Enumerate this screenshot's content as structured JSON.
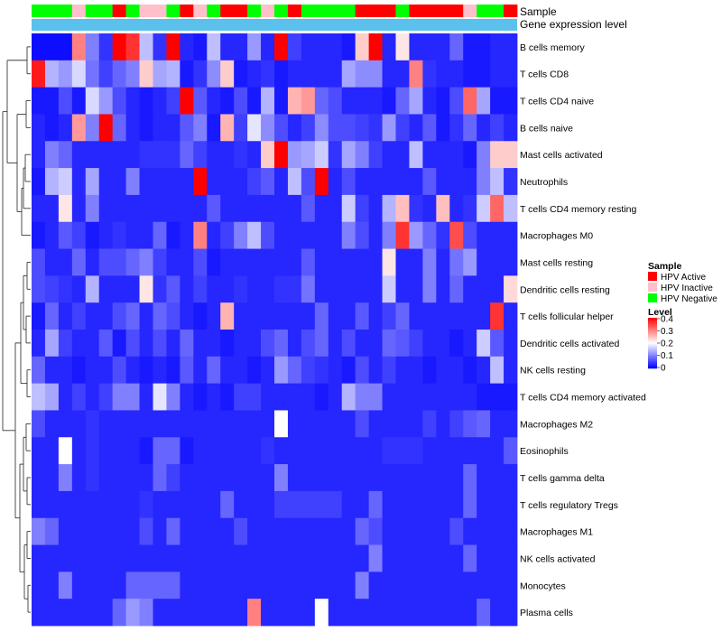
{
  "chart_data": {
    "type": "heatmap",
    "title": "",
    "annotation_tracks": [
      "Sample",
      "Gene expression level"
    ],
    "rows": [
      "B cells memory",
      "T cells CD8",
      "T cells CD4 naive",
      "B cells naive",
      "Mast cells activated",
      "Neutrophils",
      "T cells CD4 memory resting",
      "Macrophages M0",
      "Mast cells resting",
      "Dendritic cells resting",
      "T cells follicular helper",
      "Dendritic cells activated",
      "NK cells resting",
      "T cells CD4 memory activated",
      "Macrophages M2",
      "Eosinophils",
      "T cells gamma delta",
      "T cells regulatory  Tregs",
      "Macrophages M1",
      "NK cells activated",
      "Monocytes",
      "Plasma cells"
    ],
    "columns": 36,
    "sample_groups": [
      "N",
      "N",
      "N",
      "I",
      "N",
      "N",
      "A",
      "N",
      "I",
      "I",
      "N",
      "A",
      "I",
      "N",
      "A",
      "A",
      "N",
      "I",
      "N",
      "A",
      "N",
      "N",
      "N",
      "N",
      "A",
      "A",
      "A",
      "N",
      "A",
      "A",
      "A",
      "A",
      "I",
      "N",
      "N",
      "A"
    ],
    "values": [
      [
        0.01,
        0.01,
        0.01,
        0.3,
        0.1,
        0.04,
        0.4,
        0.36,
        0.15,
        0.04,
        0.4,
        0.03,
        0.02,
        0.15,
        0.03,
        0.03,
        0.12,
        0.03,
        0.4,
        0.05,
        0.03,
        0.03,
        0.03,
        0.02,
        0.24,
        0.4,
        0.03,
        0.22,
        0.03,
        0.03,
        0.03,
        0.08,
        0.02,
        0.02,
        0.03,
        0.03
      ],
      [
        0.38,
        0.14,
        0.12,
        0.17,
        0.09,
        0.05,
        0.08,
        0.1,
        0.24,
        0.13,
        0.14,
        0.02,
        0.04,
        0.11,
        0.24,
        0.02,
        0.03,
        0.04,
        0.02,
        0.03,
        0.03,
        0.03,
        0.03,
        0.13,
        0.11,
        0.11,
        0.03,
        0.03,
        0.3,
        0.04,
        0.03,
        0.03,
        0.02,
        0.02,
        0.03,
        0.03
      ],
      [
        0.02,
        0.02,
        0.06,
        0.02,
        0.17,
        0.12,
        0.06,
        0.03,
        0.02,
        0.03,
        0.05,
        0.4,
        0.07,
        0.03,
        0.02,
        0.06,
        0.02,
        0.14,
        0.02,
        0.26,
        0.28,
        0.08,
        0.06,
        0.03,
        0.03,
        0.03,
        0.02,
        0.08,
        0.13,
        0.03,
        0.02,
        0.06,
        0.32,
        0.13,
        0.02,
        0.02
      ],
      [
        0.03,
        0.02,
        0.03,
        0.28,
        0.1,
        0.4,
        0.08,
        0.03,
        0.02,
        0.03,
        0.03,
        0.07,
        0.1,
        0.02,
        0.26,
        0.05,
        0.18,
        0.11,
        0.06,
        0.03,
        0.05,
        0.11,
        0.06,
        0.06,
        0.05,
        0.04,
        0.12,
        0.05,
        0.03,
        0.07,
        0.02,
        0.04,
        0.08,
        0.03,
        0.05,
        0.03
      ],
      [
        0.03,
        0.1,
        0.08,
        0.03,
        0.03,
        0.03,
        0.03,
        0.03,
        0.04,
        0.04,
        0.04,
        0.08,
        0.05,
        0.03,
        0.03,
        0.04,
        0.03,
        0.24,
        0.4,
        0.12,
        0.13,
        0.16,
        0.04,
        0.13,
        0.1,
        0.05,
        0.03,
        0.03,
        0.15,
        0.03,
        0.03,
        0.03,
        0.02,
        0.1,
        0.24,
        0.24
      ],
      [
        0.02,
        0.14,
        0.16,
        0.03,
        0.13,
        0.03,
        0.03,
        0.1,
        0.03,
        0.03,
        0.03,
        0.03,
        0.4,
        0.03,
        0.03,
        0.03,
        0.05,
        0.07,
        0.03,
        0.15,
        0.06,
        0.4,
        0.03,
        0.06,
        0.03,
        0.03,
        0.03,
        0.03,
        0.03,
        0.07,
        0.03,
        0.03,
        0.03,
        0.1,
        0.15,
        0.04
      ],
      [
        0.03,
        0.03,
        0.22,
        0.03,
        0.1,
        0.03,
        0.03,
        0.03,
        0.03,
        0.03,
        0.03,
        0.03,
        0.03,
        0.07,
        0.03,
        0.03,
        0.03,
        0.03,
        0.03,
        0.03,
        0.07,
        0.03,
        0.03,
        0.16,
        0.05,
        0.03,
        0.14,
        0.25,
        0.04,
        0.03,
        0.25,
        0.03,
        0.04,
        0.16,
        0.32,
        0.15
      ],
      [
        0.02,
        0.03,
        0.07,
        0.05,
        0.02,
        0.03,
        0.04,
        0.03,
        0.03,
        0.08,
        0.02,
        0.03,
        0.3,
        0.03,
        0.05,
        0.1,
        0.15,
        0.06,
        0.03,
        0.03,
        0.03,
        0.03,
        0.03,
        0.1,
        0.06,
        0.03,
        0.1,
        0.36,
        0.12,
        0.08,
        0.04,
        0.34,
        0.06,
        0.03,
        0.03,
        0.03
      ],
      [
        0.06,
        0.03,
        0.03,
        0.08,
        0.03,
        0.06,
        0.06,
        0.08,
        0.1,
        0.05,
        0.03,
        0.03,
        0.06,
        0.02,
        0.03,
        0.03,
        0.03,
        0.03,
        0.03,
        0.03,
        0.07,
        0.03,
        0.03,
        0.03,
        0.03,
        0.03,
        0.22,
        0.03,
        0.03,
        0.1,
        0.03,
        0.09,
        0.12,
        0.03,
        0.03,
        0.03
      ],
      [
        0.06,
        0.05,
        0.04,
        0.03,
        0.14,
        0.03,
        0.03,
        0.03,
        0.22,
        0.04,
        0.07,
        0.03,
        0.05,
        0.03,
        0.03,
        0.04,
        0.03,
        0.03,
        0.04,
        0.04,
        0.09,
        0.03,
        0.03,
        0.03,
        0.03,
        0.03,
        0.16,
        0.03,
        0.03,
        0.1,
        0.03,
        0.08,
        0.03,
        0.03,
        0.03,
        0.23
      ],
      [
        0.02,
        0.08,
        0.03,
        0.05,
        0.03,
        0.03,
        0.06,
        0.08,
        0.03,
        0.08,
        0.06,
        0.03,
        0.02,
        0.03,
        0.26,
        0.03,
        0.03,
        0.03,
        0.03,
        0.03,
        0.03,
        0.08,
        0.03,
        0.03,
        0.07,
        0.03,
        0.05,
        0.08,
        0.03,
        0.03,
        0.03,
        0.03,
        0.03,
        0.03,
        0.36,
        0.03
      ],
      [
        0.03,
        0.13,
        0.05,
        0.03,
        0.03,
        0.07,
        0.02,
        0.06,
        0.03,
        0.06,
        0.03,
        0.08,
        0.03,
        0.03,
        0.02,
        0.03,
        0.03,
        0.06,
        0.08,
        0.03,
        0.06,
        0.08,
        0.03,
        0.06,
        0.03,
        0.03,
        0.08,
        0.07,
        0.05,
        0.03,
        0.03,
        0.02,
        0.03,
        0.16,
        0.07,
        0.03
      ],
      [
        0.08,
        0.03,
        0.03,
        0.02,
        0.03,
        0.03,
        0.06,
        0.03,
        0.02,
        0.03,
        0.02,
        0.07,
        0.03,
        0.08,
        0.03,
        0.03,
        0.02,
        0.03,
        0.12,
        0.08,
        0.05,
        0.04,
        0.03,
        0.02,
        0.06,
        0.03,
        0.05,
        0.03,
        0.03,
        0.02,
        0.03,
        0.03,
        0.02,
        0.03,
        0.15,
        0.03
      ],
      [
        0.15,
        0.13,
        0.03,
        0.05,
        0.03,
        0.05,
        0.1,
        0.1,
        0.03,
        0.18,
        0.1,
        0.03,
        0.02,
        0.03,
        0.02,
        0.05,
        0.05,
        0.03,
        0.03,
        0.03,
        0.03,
        0.02,
        0.03,
        0.14,
        0.1,
        0.1,
        0.03,
        0.03,
        0.03,
        0.03,
        0.03,
        0.03,
        0.03,
        0.02,
        0.02,
        0.02
      ],
      [
        0.06,
        0.03,
        0.03,
        0.03,
        0.04,
        0.03,
        0.03,
        0.03,
        0.03,
        0.03,
        0.03,
        0.03,
        0.03,
        0.03,
        0.03,
        0.03,
        0.03,
        0.03,
        0.2,
        0.03,
        0.03,
        0.03,
        0.03,
        0.03,
        0.06,
        0.03,
        0.03,
        0.03,
        0.03,
        0.05,
        0.03,
        0.05,
        0.07,
        0.08,
        0.03,
        0.03
      ],
      [
        0.03,
        0.03,
        0.2,
        0.03,
        0.04,
        0.03,
        0.03,
        0.03,
        0.02,
        0.08,
        0.08,
        0.02,
        0.03,
        0.03,
        0.03,
        0.03,
        0.03,
        0.04,
        0.03,
        0.03,
        0.03,
        0.03,
        0.03,
        0.03,
        0.03,
        0.03,
        0.04,
        0.04,
        0.04,
        0.03,
        0.03,
        0.03,
        0.03,
        0.03,
        0.03,
        0.07
      ],
      [
        0.03,
        0.03,
        0.1,
        0.03,
        0.04,
        0.03,
        0.03,
        0.03,
        0.03,
        0.08,
        0.05,
        0.03,
        0.03,
        0.03,
        0.03,
        0.03,
        0.03,
        0.03,
        0.1,
        0.03,
        0.03,
        0.03,
        0.03,
        0.03,
        0.03,
        0.03,
        0.03,
        0.03,
        0.03,
        0.03,
        0.03,
        0.03,
        0.08,
        0.03,
        0.03,
        0.03
      ],
      [
        0.03,
        0.03,
        0.03,
        0.03,
        0.03,
        0.03,
        0.03,
        0.03,
        0.04,
        0.03,
        0.03,
        0.03,
        0.03,
        0.03,
        0.08,
        0.03,
        0.03,
        0.03,
        0.05,
        0.05,
        0.05,
        0.05,
        0.05,
        0.03,
        0.03,
        0.08,
        0.03,
        0.03,
        0.03,
        0.03,
        0.03,
        0.03,
        0.08,
        0.03,
        0.03,
        0.03
      ],
      [
        0.1,
        0.08,
        0.03,
        0.03,
        0.03,
        0.03,
        0.03,
        0.03,
        0.06,
        0.03,
        0.08,
        0.03,
        0.03,
        0.03,
        0.03,
        0.06,
        0.03,
        0.03,
        0.03,
        0.03,
        0.03,
        0.03,
        0.03,
        0.03,
        0.08,
        0.06,
        0.03,
        0.03,
        0.03,
        0.03,
        0.03,
        0.06,
        0.03,
        0.03,
        0.03,
        0.03
      ],
      [
        0.03,
        0.03,
        0.03,
        0.03,
        0.03,
        0.03,
        0.03,
        0.03,
        0.03,
        0.03,
        0.03,
        0.03,
        0.03,
        0.03,
        0.03,
        0.03,
        0.03,
        0.03,
        0.03,
        0.03,
        0.03,
        0.03,
        0.03,
        0.03,
        0.03,
        0.1,
        0.03,
        0.03,
        0.03,
        0.03,
        0.03,
        0.03,
        0.08,
        0.03,
        0.03,
        0.03
      ],
      [
        0.03,
        0.03,
        0.1,
        0.03,
        0.03,
        0.03,
        0.03,
        0.08,
        0.08,
        0.08,
        0.08,
        0.03,
        0.03,
        0.03,
        0.03,
        0.03,
        0.03,
        0.03,
        0.03,
        0.03,
        0.03,
        0.03,
        0.03,
        0.03,
        0.1,
        0.03,
        0.03,
        0.03,
        0.03,
        0.03,
        0.03,
        0.03,
        0.03,
        0.03,
        0.03,
        0.03
      ],
      [
        0.03,
        0.03,
        0.03,
        0.03,
        0.03,
        0.03,
        0.08,
        0.12,
        0.1,
        0.03,
        0.03,
        0.03,
        0.03,
        0.03,
        0.03,
        0.03,
        0.3,
        0.03,
        0.03,
        0.03,
        0.03,
        0.2,
        0.03,
        0.03,
        0.03,
        0.03,
        0.03,
        0.03,
        0.03,
        0.03,
        0.03,
        0.03,
        0.03,
        0.08,
        0.03,
        0.03
      ]
    ],
    "legend": {
      "sample": {
        "title": "Sample",
        "entries": [
          {
            "code": "A",
            "label": "HPV Active",
            "color": "#ff0000"
          },
          {
            "code": "I",
            "label": "HPV Inactive",
            "color": "#ffc0cb"
          },
          {
            "code": "N",
            "label": "HPV Negative",
            "color": "#00ff00"
          }
        ]
      },
      "level": {
        "title": "Level",
        "min": 0,
        "max": 0.4,
        "ticks": [
          "0",
          "0.1",
          "0.2",
          "0.3",
          "0.4"
        ],
        "low_color": "#0000ff",
        "mid_color": "#ffffff",
        "high_color": "#ff0000"
      }
    },
    "expression_bar_color": "#5bc0eb"
  }
}
